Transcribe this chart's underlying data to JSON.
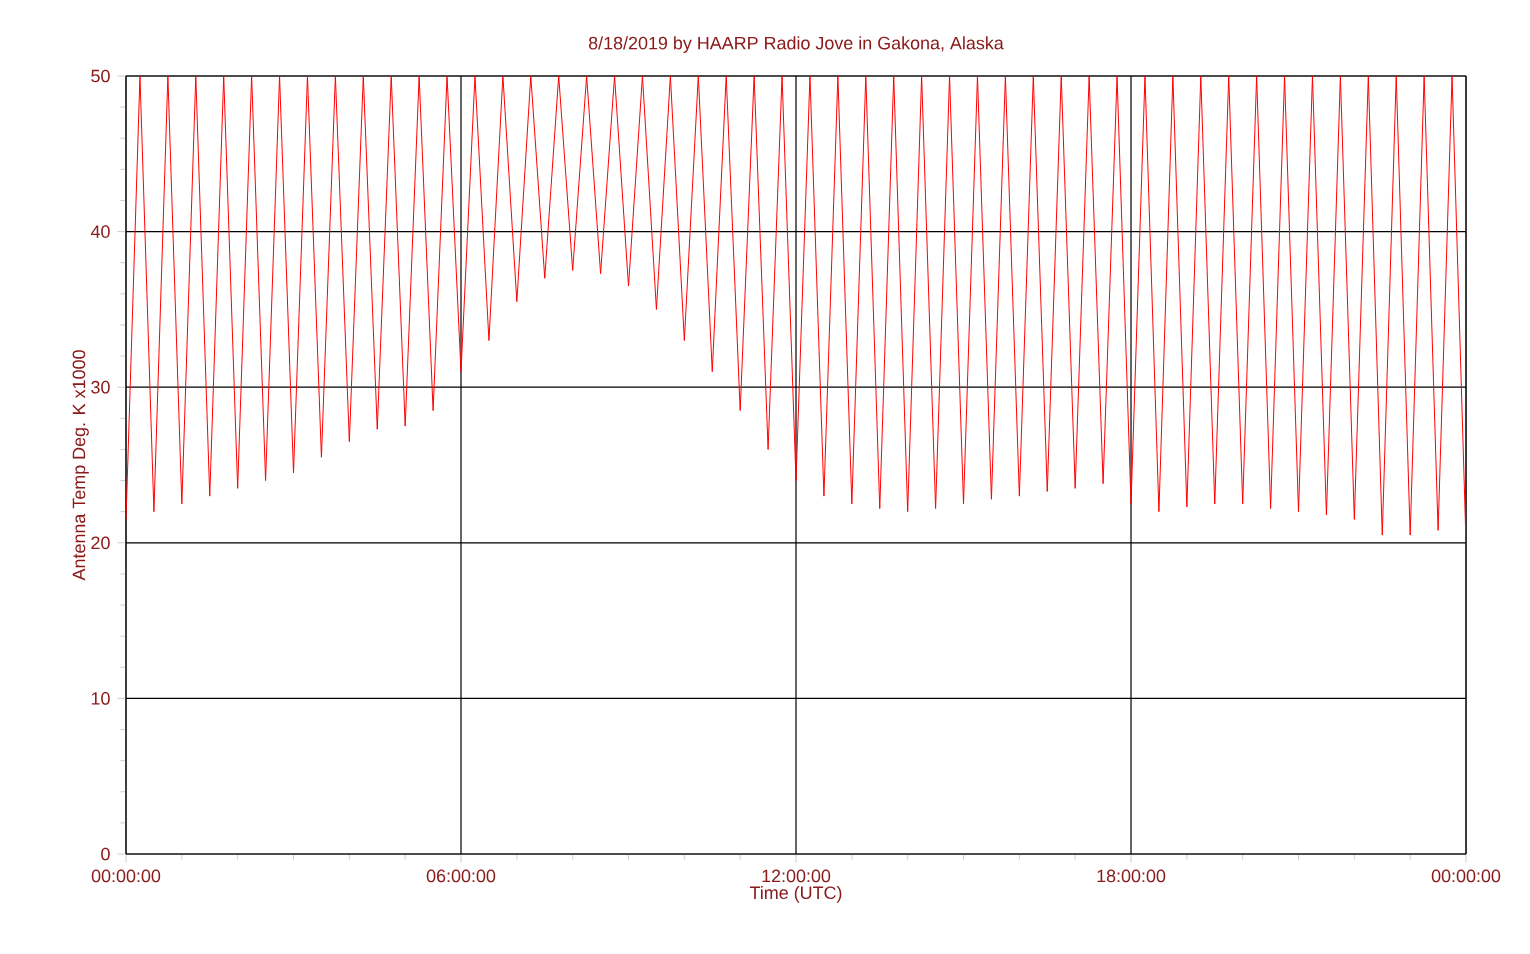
{
  "chart_data": {
    "type": "line",
    "title": "8/18/2019  by  HAARP Radio Jove  in  Gakona, Alaska",
    "xlabel": "Time (UTC)",
    "ylabel": "Antenna Temp Deg. K x1000",
    "x": [
      "2019-08-18T00:00",
      "2019-08-18T00:15",
      "2019-08-18T00:30",
      "2019-08-18T00:45",
      "2019-08-18T01:00",
      "2019-08-18T01:15",
      "2019-08-18T01:30",
      "2019-08-18T01:45",
      "2019-08-18T02:00",
      "2019-08-18T02:15",
      "2019-08-18T02:30",
      "2019-08-18T02:45",
      "2019-08-18T03:00",
      "2019-08-18T03:15",
      "2019-08-18T03:30",
      "2019-08-18T03:45",
      "2019-08-18T04:00",
      "2019-08-18T04:15",
      "2019-08-18T04:30",
      "2019-08-18T04:45",
      "2019-08-18T05:00",
      "2019-08-18T05:15",
      "2019-08-18T05:30",
      "2019-08-18T05:45",
      "2019-08-18T06:00",
      "2019-08-18T06:15",
      "2019-08-18T06:30",
      "2019-08-18T06:45",
      "2019-08-18T07:00",
      "2019-08-18T07:15",
      "2019-08-18T07:30",
      "2019-08-18T07:45",
      "2019-08-18T08:00",
      "2019-08-18T08:15",
      "2019-08-18T08:30",
      "2019-08-18T08:45",
      "2019-08-18T09:00",
      "2019-08-18T09:15",
      "2019-08-18T09:30",
      "2019-08-18T09:45",
      "2019-08-18T10:00",
      "2019-08-18T10:15",
      "2019-08-18T10:30",
      "2019-08-18T10:45",
      "2019-08-18T11:00",
      "2019-08-18T11:15",
      "2019-08-18T11:30",
      "2019-08-18T11:45",
      "2019-08-18T12:00",
      "2019-08-18T12:15",
      "2019-08-18T12:30",
      "2019-08-18T12:45",
      "2019-08-18T13:00",
      "2019-08-18T13:15",
      "2019-08-18T13:30",
      "2019-08-18T13:45",
      "2019-08-18T14:00",
      "2019-08-18T14:15",
      "2019-08-18T14:30",
      "2019-08-18T14:45",
      "2019-08-18T15:00",
      "2019-08-18T15:15",
      "2019-08-18T15:30",
      "2019-08-18T15:45",
      "2019-08-18T16:00",
      "2019-08-18T16:15",
      "2019-08-18T16:30",
      "2019-08-18T16:45",
      "2019-08-18T17:00",
      "2019-08-18T17:15",
      "2019-08-18T17:30",
      "2019-08-18T17:45",
      "2019-08-18T18:00",
      "2019-08-18T18:15",
      "2019-08-18T18:30",
      "2019-08-18T18:45",
      "2019-08-18T19:00",
      "2019-08-18T19:15",
      "2019-08-18T19:30",
      "2019-08-18T19:45",
      "2019-08-18T20:00",
      "2019-08-18T20:15",
      "2019-08-18T20:30",
      "2019-08-18T20:45",
      "2019-08-18T21:00",
      "2019-08-18T21:15",
      "2019-08-18T21:30",
      "2019-08-18T21:45",
      "2019-08-18T22:00",
      "2019-08-18T22:15",
      "2019-08-18T22:30",
      "2019-08-18T22:45",
      "2019-08-18T23:00",
      "2019-08-18T23:15",
      "2019-08-18T23:30",
      "2019-08-18T23:45",
      "2019-08-19T00:00"
    ],
    "values": [
      21.5,
      50,
      22,
      50,
      22.5,
      50,
      23,
      50,
      23.5,
      50,
      24,
      50,
      24.5,
      50,
      25.5,
      50,
      26.5,
      50,
      27.3,
      50,
      27.5,
      50,
      28.5,
      50,
      31,
      50,
      33,
      50,
      35.5,
      50,
      37,
      50,
      37.5,
      50,
      37.3,
      50,
      36.5,
      50,
      35,
      50,
      33,
      50,
      31,
      50,
      28.5,
      50,
      26,
      50,
      24,
      50,
      23,
      50,
      22.5,
      50,
      22.2,
      50,
      22,
      50,
      22.2,
      50,
      22.5,
      50,
      22.8,
      50,
      23,
      50,
      23.3,
      50,
      23.5,
      50,
      23.8,
      50,
      22.5,
      50,
      22,
      50,
      22.3,
      50,
      22.5,
      50,
      22.5,
      50,
      22.2,
      50,
      22,
      50,
      21.8,
      50,
      21.5,
      50,
      20.5,
      50,
      20.5,
      50,
      20.8,
      50,
      20
    ],
    "color": "#ff0000",
    "xlim": [
      "2019-08-18T00:00",
      "2019-08-19T00:00"
    ],
    "xticks": [
      {
        "value": "2019-08-18T00:00",
        "label": "00:00:00"
      },
      {
        "value": "2019-08-18T06:00",
        "label": "06:00:00"
      },
      {
        "value": "2019-08-18T12:00",
        "label": "12:00:00"
      },
      {
        "value": "2019-08-18T18:00",
        "label": "18:00:00"
      },
      {
        "value": "2019-08-19T00:00",
        "label": "00:00:00"
      }
    ],
    "ylim": [
      0,
      50
    ],
    "yticks": [
      0,
      10,
      20,
      30,
      40,
      50
    ],
    "grid": true
  }
}
